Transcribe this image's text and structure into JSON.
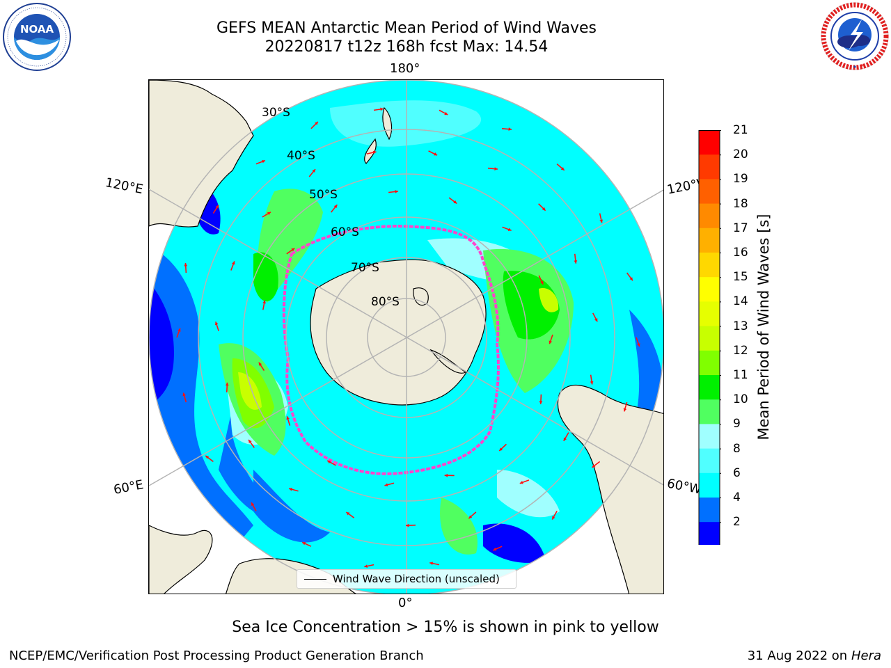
{
  "header": {
    "title_line1": "GEFS MEAN Antarctic Mean Period of Wind Waves",
    "title_line2": "20220817 t12z 168h fcst   Max: 14.54"
  },
  "logos": {
    "left": {
      "name": "noaa-logo",
      "text": "NOAA",
      "ring_text": "NATIONAL OCEANIC AND ATMOSPHERIC ADMINISTRATION · U.S. DEPARTMENT OF COMMERCE"
    },
    "right": {
      "name": "national-weather-service-logo",
      "ring_text": "NATIONAL WEATHER SERVICE"
    }
  },
  "map": {
    "longitude_labels": {
      "top": "180°",
      "bottom": "0°",
      "left_upper": "120°E",
      "left_lower": "60°E",
      "right_upper": "120°W",
      "right_lower": "60°W"
    },
    "latitude_labels": [
      "30°S",
      "40°S",
      "50°S",
      "60°S",
      "70°S",
      "80°S"
    ],
    "legend": "Wind Wave Direction (unscaled)",
    "colors": {
      "land": "#efecdb",
      "ice_edge": "#ff44cc",
      "arrow": "#ff1010",
      "grid": "#b4b4b4"
    }
  },
  "colorbar": {
    "label": "Mean Period of Wind Waves [s]",
    "ticks": [
      "21",
      "20",
      "19",
      "18",
      "17",
      "16",
      "15",
      "14",
      "13",
      "12",
      "11",
      "10",
      "9",
      "8",
      "6",
      "4",
      "2"
    ],
    "colors_top_to_bottom": [
      "#ff0000",
      "#ff3a00",
      "#ff6000",
      "#ff8a00",
      "#ffb000",
      "#ffd800",
      "#ffff00",
      "#e6ff00",
      "#c8ff00",
      "#80ff00",
      "#00f000",
      "#50ff60",
      "#a0ffff",
      "#50ffff",
      "#00ffff",
      "#0070ff",
      "#0000ff"
    ],
    "extend_color": "#0000ff"
  },
  "footer": {
    "caption": "Sea Ice Concentration > 15% is shown in pink to yellow",
    "left": "NCEP/EMC/Verification Post Processing Product Generation Branch",
    "right_date": "31 Aug 2022 on",
    "right_host": "Hera"
  }
}
